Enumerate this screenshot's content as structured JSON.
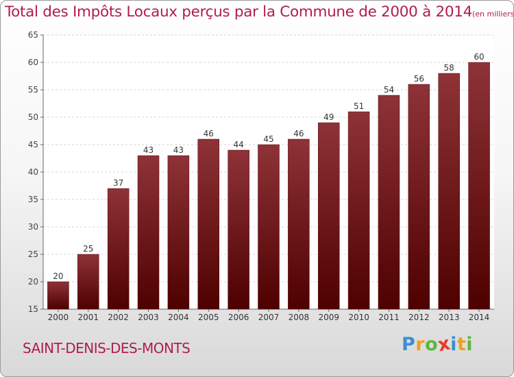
{
  "chart_data": {
    "type": "bar",
    "title": "Total des Impôts Locaux perçus par la Commune de 2000 à 2014",
    "unit": "(en milliers d'€)",
    "categories": [
      "2000",
      "2001",
      "2002",
      "2003",
      "2004",
      "2005",
      "2006",
      "2007",
      "2008",
      "2009",
      "2010",
      "2011",
      "2012",
      "2013",
      "2014"
    ],
    "values": [
      20,
      25,
      37,
      43,
      43,
      46,
      44,
      45,
      46,
      49,
      51,
      54,
      56,
      58,
      60
    ],
    "ylim": [
      15,
      65
    ],
    "yticks": [
      15,
      20,
      25,
      30,
      35,
      40,
      45,
      50,
      55,
      60,
      65
    ],
    "grid": true,
    "bar_color": "#7a1a1f"
  },
  "commune": "SAINT-DENIS-DES-MONTS",
  "brand": {
    "letters": [
      "P",
      "r",
      "o",
      "x",
      "i",
      "t",
      "i"
    ],
    "colors": [
      "#3a8fd6",
      "#f0a020",
      "#5cb840",
      "#e83a2a",
      "#3a8fd6",
      "#f0a020",
      "#5cb840"
    ]
  }
}
